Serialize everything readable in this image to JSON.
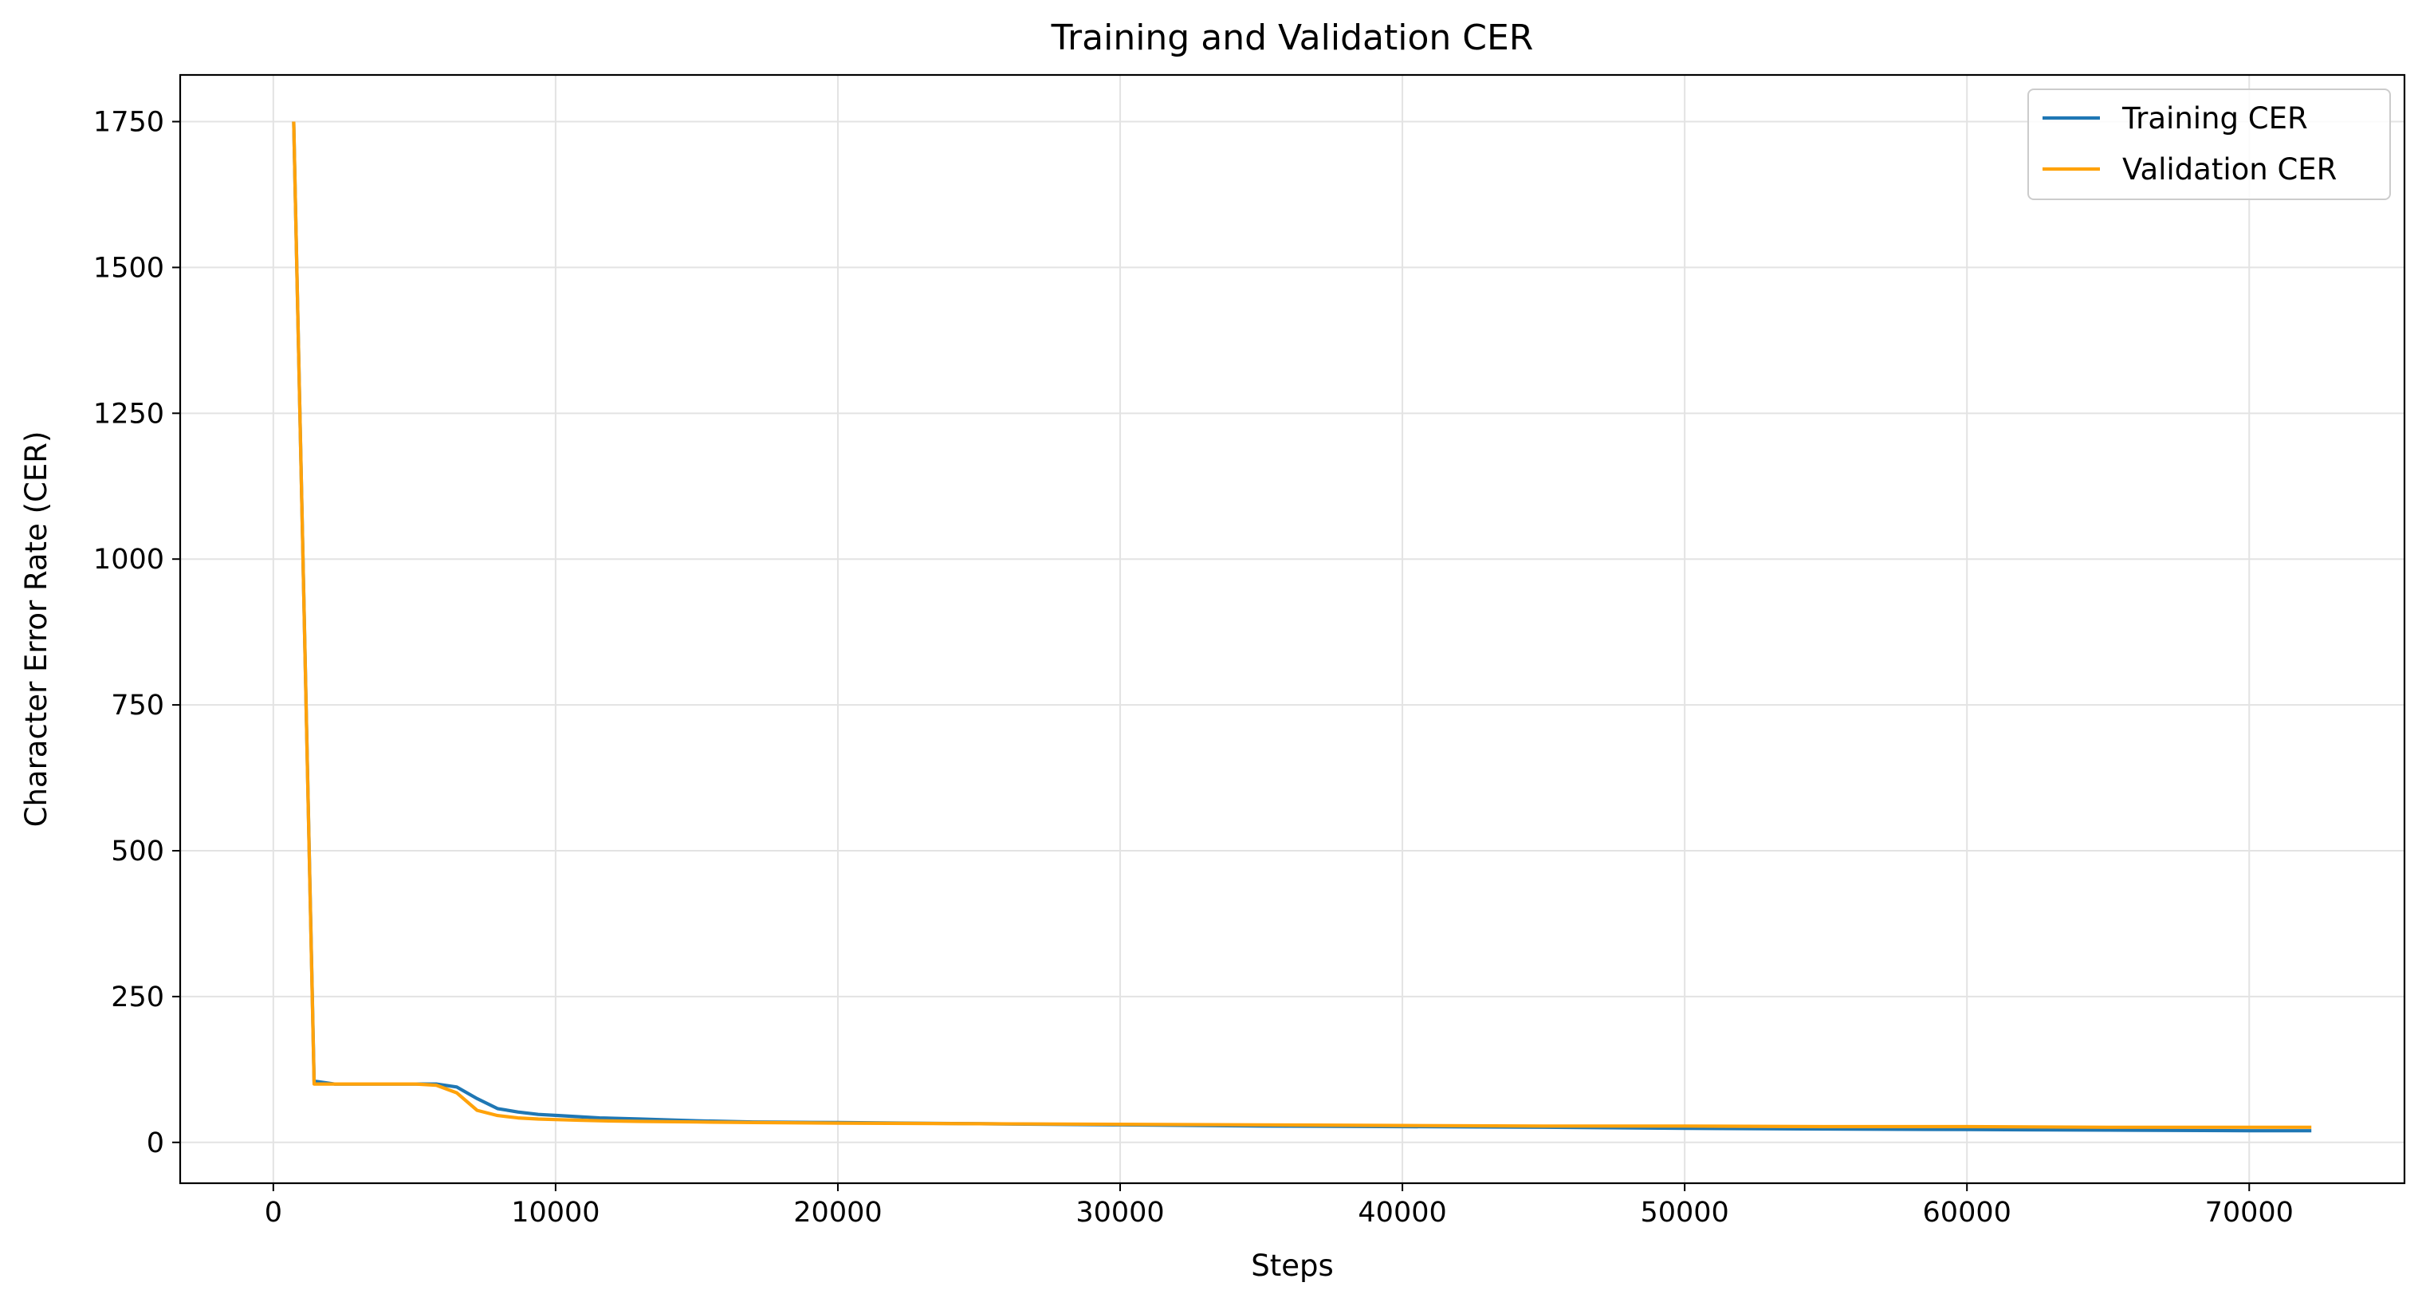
{
  "chart_data": {
    "type": "line",
    "title": "Training and Validation CER",
    "xlabel": "Steps",
    "ylabel": "Character Error Rate (CER)",
    "xlim": [
      -3300,
      75500
    ],
    "ylim": [
      -70,
      1830
    ],
    "xticks": [
      0,
      10000,
      20000,
      30000,
      40000,
      50000,
      60000,
      70000
    ],
    "yticks": [
      0,
      250,
      500,
      750,
      1000,
      1250,
      1500,
      1750
    ],
    "grid": true,
    "legend_position": "top-right",
    "series": [
      {
        "name": "Training CER",
        "color": "#1f77b4",
        "x": [
          722,
          1444,
          2166,
          2888,
          3610,
          4332,
          5054,
          5776,
          6498,
          7220,
          7942,
          8664,
          9386,
          10108,
          10830,
          11552,
          13000,
          15000,
          17000,
          20000,
          25000,
          30000,
          35000,
          40000,
          45000,
          50000,
          55000,
          60000,
          65000,
          70000,
          72200
        ],
        "y": [
          1750,
          105,
          100,
          100,
          100,
          100,
          100,
          100,
          95,
          75,
          58,
          52,
          48,
          46,
          44,
          42,
          40,
          37,
          35,
          34,
          32,
          30,
          28,
          27,
          26,
          24,
          23,
          22,
          21,
          20,
          20
        ]
      },
      {
        "name": "Validation CER",
        "color": "#ffa20a",
        "x": [
          722,
          1444,
          2166,
          2888,
          3610,
          4332,
          5054,
          5776,
          6498,
          7220,
          7942,
          8664,
          9386,
          10108,
          10830,
          11552,
          13000,
          15000,
          17000,
          20000,
          25000,
          30000,
          35000,
          40000,
          45000,
          50000,
          55000,
          60000,
          65000,
          70000,
          72200
        ],
        "y": [
          1750,
          100,
          100,
          100,
          100,
          100,
          100,
          98,
          85,
          55,
          46,
          42,
          40,
          39,
          38,
          37,
          36,
          35,
          34,
          33,
          32,
          31,
          30,
          29,
          28,
          28,
          27,
          27,
          26,
          26,
          26
        ]
      }
    ]
  }
}
